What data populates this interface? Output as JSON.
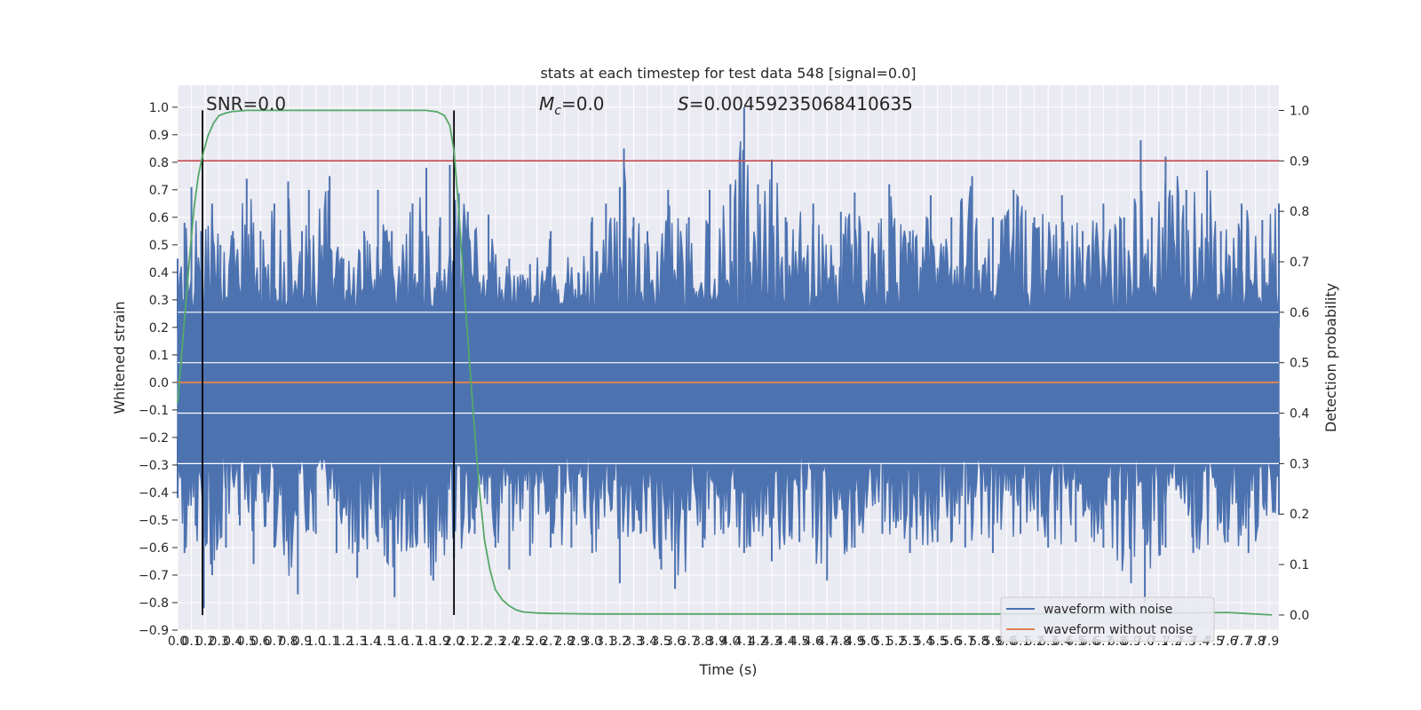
{
  "chart_data": {
    "type": "line",
    "title": "stats at each timestep for test data 548 [signal=0.0]",
    "xlabel": "Time (s)",
    "ylabel": "Whitened strain",
    "y2label": "Detection probability",
    "xlim": [
      0.0,
      7.97
    ],
    "ylim": [
      -0.9,
      1.08
    ],
    "y2lim": [
      -0.03,
      1.05
    ],
    "x_ticks": [
      0.0,
      0.1,
      0.2,
      0.3,
      0.4,
      0.5,
      0.6,
      0.7,
      0.8,
      0.9,
      1.0,
      1.1,
      1.2,
      1.3,
      1.4,
      1.5,
      1.6,
      1.7,
      1.8,
      1.9,
      2.0,
      2.1,
      2.2,
      2.3,
      2.4,
      2.5,
      2.6,
      2.7,
      2.8,
      2.9,
      3.0,
      3.1,
      3.2,
      3.3,
      3.4,
      3.5,
      3.6,
      3.7,
      3.8,
      3.9,
      4.0,
      4.1,
      4.2,
      4.3,
      4.4,
      4.5,
      4.6,
      4.7,
      4.8,
      4.9,
      5.0,
      5.1,
      5.2,
      5.3,
      5.4,
      5.5,
      5.6,
      5.7,
      5.8,
      5.9,
      6.0,
      6.1,
      6.2,
      6.3,
      6.4,
      6.5,
      6.6,
      6.7,
      6.8,
      6.9,
      7.0,
      7.1,
      7.2,
      7.3,
      7.4,
      7.5,
      7.6,
      7.7,
      7.8,
      7.9
    ],
    "y_ticks": [
      -0.9,
      -0.8,
      -0.7,
      -0.6,
      -0.5,
      -0.4,
      -0.3,
      -0.2,
      -0.1,
      0.0,
      0.1,
      0.2,
      0.3,
      0.4,
      0.5,
      0.6,
      0.7,
      0.8,
      0.9,
      1.0
    ],
    "y2_ticks": [
      0.0,
      0.1,
      0.2,
      0.3,
      0.4,
      0.5,
      0.6,
      0.7,
      0.8,
      0.9,
      1.0
    ],
    "grid": true,
    "legend_position": "bottom-right",
    "annotations": {
      "snr": "SNR=0.0",
      "mc": "=0.0",
      "s": "=0.00459235068410635"
    },
    "vertical_lines_x": [
      0.18,
      2.0
    ],
    "threshold_y2": 0.9,
    "series": [
      {
        "name": "waveform with noise",
        "color": "#4c72b0",
        "envelope_upper": [
          [
            0.0,
            0.45
          ],
          [
            0.05,
            0.58
          ],
          [
            0.1,
            0.71
          ],
          [
            0.17,
            0.55
          ],
          [
            0.25,
            0.65
          ],
          [
            0.31,
            0.5
          ],
          [
            0.4,
            0.55
          ],
          [
            0.5,
            0.74
          ],
          [
            0.6,
            0.55
          ],
          [
            0.7,
            0.65
          ],
          [
            0.8,
            0.73
          ],
          [
            0.9,
            0.55
          ],
          [
            0.95,
            0.7
          ],
          [
            1.1,
            0.75
          ],
          [
            1.2,
            0.45
          ],
          [
            1.35,
            0.55
          ],
          [
            1.45,
            0.7
          ],
          [
            1.55,
            0.55
          ],
          [
            1.7,
            0.65
          ],
          [
            1.8,
            0.78
          ],
          [
            1.9,
            0.6
          ],
          [
            1.97,
            0.79
          ],
          [
            2.1,
            0.62
          ],
          [
            2.25,
            0.61
          ],
          [
            2.4,
            0.45
          ],
          [
            2.55,
            0.43
          ],
          [
            2.7,
            0.55
          ],
          [
            2.9,
            0.4
          ],
          [
            3.0,
            0.6
          ],
          [
            3.1,
            0.65
          ],
          [
            3.2,
            0.71
          ],
          [
            3.23,
            0.85
          ],
          [
            3.3,
            0.6
          ],
          [
            3.4,
            0.55
          ],
          [
            3.55,
            0.7
          ],
          [
            3.7,
            0.6
          ],
          [
            3.85,
            0.7
          ],
          [
            4.0,
            0.72
          ],
          [
            4.1,
            1.0
          ],
          [
            4.2,
            0.72
          ],
          [
            4.3,
            0.81
          ],
          [
            4.4,
            0.6
          ],
          [
            4.6,
            0.65
          ],
          [
            4.8,
            0.62
          ],
          [
            4.9,
            0.69
          ],
          [
            5.0,
            0.55
          ],
          [
            5.15,
            0.72
          ],
          [
            5.3,
            0.55
          ],
          [
            5.45,
            0.68
          ],
          [
            5.6,
            0.6
          ],
          [
            5.75,
            0.75
          ],
          [
            5.9,
            0.6
          ],
          [
            6.05,
            0.7
          ],
          [
            6.2,
            0.6
          ],
          [
            6.4,
            0.68
          ],
          [
            6.55,
            0.55
          ],
          [
            6.7,
            0.65
          ],
          [
            6.85,
            0.6
          ],
          [
            6.97,
            0.88
          ],
          [
            7.05,
            0.6
          ],
          [
            7.15,
            0.82
          ],
          [
            7.3,
            0.7
          ],
          [
            7.45,
            0.77
          ],
          [
            7.55,
            0.55
          ],
          [
            7.7,
            0.65
          ],
          [
            7.85,
            0.59
          ],
          [
            7.97,
            0.65
          ]
        ],
        "envelope_lower": [
          [
            0.0,
            -0.42
          ],
          [
            0.05,
            -0.62
          ],
          [
            0.13,
            -0.52
          ],
          [
            0.19,
            -0.82
          ],
          [
            0.25,
            -0.7
          ],
          [
            0.35,
            -0.6
          ],
          [
            0.45,
            -0.52
          ],
          [
            0.55,
            -0.66
          ],
          [
            0.7,
            -0.6
          ],
          [
            0.87,
            -0.77
          ],
          [
            1.0,
            -0.55
          ],
          [
            1.15,
            -0.62
          ],
          [
            1.3,
            -0.71
          ],
          [
            1.45,
            -0.58
          ],
          [
            1.57,
            -0.78
          ],
          [
            1.7,
            -0.6
          ],
          [
            1.85,
            -0.72
          ],
          [
            2.0,
            -0.64
          ],
          [
            2.15,
            -0.55
          ],
          [
            2.3,
            -0.6
          ],
          [
            2.4,
            -0.68
          ],
          [
            2.55,
            -0.63
          ],
          [
            2.7,
            -0.6
          ],
          [
            2.85,
            -0.6
          ],
          [
            3.0,
            -0.62
          ],
          [
            3.2,
            -0.73
          ],
          [
            3.35,
            -0.55
          ],
          [
            3.5,
            -0.68
          ],
          [
            3.6,
            -0.75
          ],
          [
            3.8,
            -0.6
          ],
          [
            3.95,
            -0.55
          ],
          [
            4.1,
            -0.62
          ],
          [
            4.3,
            -0.65
          ],
          [
            4.5,
            -0.58
          ],
          [
            4.7,
            -0.72
          ],
          [
            4.9,
            -0.6
          ],
          [
            5.1,
            -0.55
          ],
          [
            5.3,
            -0.62
          ],
          [
            5.5,
            -0.58
          ],
          [
            5.7,
            -0.6
          ],
          [
            5.9,
            -0.62
          ],
          [
            6.1,
            -0.55
          ],
          [
            6.3,
            -0.6
          ],
          [
            6.5,
            -0.58
          ],
          [
            6.7,
            -0.6
          ],
          [
            6.9,
            -0.73
          ],
          [
            7.0,
            -0.8
          ],
          [
            7.15,
            -0.6
          ],
          [
            7.35,
            -0.62
          ],
          [
            7.6,
            -0.58
          ],
          [
            7.75,
            -0.62
          ],
          [
            7.97,
            -0.48
          ]
        ]
      },
      {
        "name": "waveform without noise",
        "color": "#dd8452",
        "x": [
          0.0,
          7.97
        ],
        "values": [
          0.0,
          0.0
        ]
      },
      {
        "name": "detection probability",
        "color": "#55a868",
        "axis": "y2",
        "x": [
          0.0,
          0.03,
          0.06,
          0.09,
          0.12,
          0.15,
          0.18,
          0.22,
          0.26,
          0.3,
          0.35,
          0.4,
          0.5,
          0.7,
          1.0,
          1.5,
          1.8,
          1.88,
          1.93,
          1.97,
          2.0,
          2.03,
          2.06,
          2.1,
          2.14,
          2.18,
          2.22,
          2.26,
          2.3,
          2.35,
          2.4,
          2.45,
          2.5,
          2.6,
          2.7,
          3.0,
          4.0,
          5.0,
          6.0,
          7.0,
          7.6,
          7.92
        ],
        "values": [
          0.42,
          0.52,
          0.62,
          0.72,
          0.81,
          0.87,
          0.91,
          0.95,
          0.975,
          0.99,
          0.995,
          0.998,
          1.0,
          1.0,
          1.0,
          1.0,
          1.0,
          0.997,
          0.99,
          0.97,
          0.92,
          0.82,
          0.7,
          0.55,
          0.4,
          0.26,
          0.15,
          0.09,
          0.05,
          0.03,
          0.018,
          0.01,
          0.006,
          0.004,
          0.003,
          0.002,
          0.002,
          0.002,
          0.002,
          0.003,
          0.005,
          0.0
        ]
      }
    ]
  }
}
